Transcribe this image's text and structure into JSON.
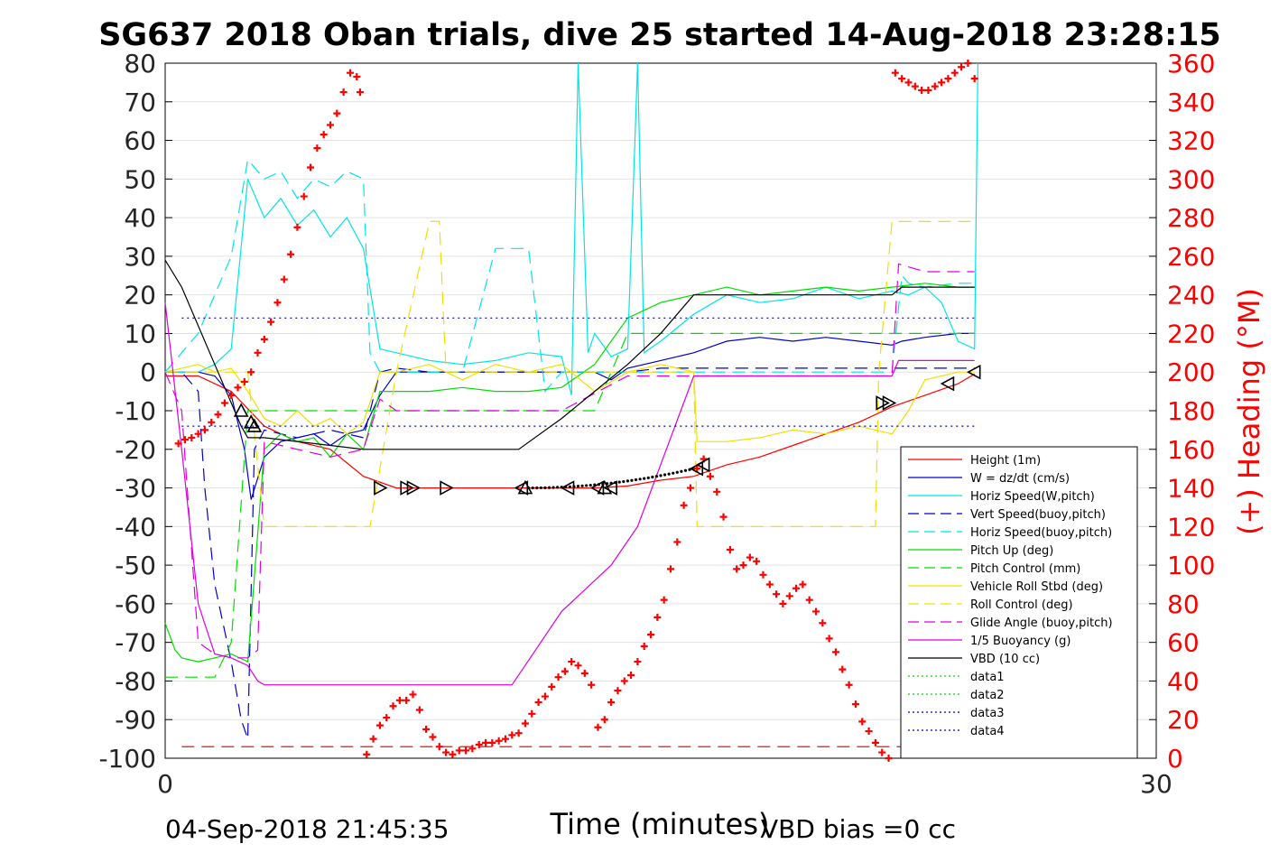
{
  "chart_data": {
    "type": "line",
    "title": "SG637 2018 Oban trials, dive 25 started 14-Aug-2018 23:28:15",
    "xlabel": "Time (minutes)",
    "ylabel_right": "(+) Heading (°M)",
    "footer_left": "04-Sep-2018 21:45:35",
    "footer_right": "VBD bias =0 cc",
    "xlim": [
      0,
      30
    ],
    "ylim": [
      -100,
      80
    ],
    "y2lim": [
      0,
      360
    ],
    "x_ticks": [
      "0",
      "30"
    ],
    "y_ticks": [
      "80",
      "70",
      "60",
      "50",
      "40",
      "30",
      "20",
      "10",
      "0",
      "-10",
      "-20",
      "-30",
      "-40",
      "-50",
      "-60",
      "-70",
      "-80",
      "-90",
      "-100"
    ],
    "y2_ticks": [
      "360",
      "340",
      "320",
      "300",
      "280",
      "260",
      "240",
      "220",
      "200",
      "180",
      "160",
      "140",
      "120",
      "100",
      "80",
      "60",
      "40",
      "20",
      "0"
    ],
    "grid": true,
    "legend_placement": "bottom-right",
    "colors": {
      "red": "#ff0000",
      "blue": "#0000cc",
      "cyan": "#00e5e5",
      "green": "#00dd00",
      "yellow": "#f0e000",
      "magenta": "#dd00dd",
      "black": "#000000",
      "heading": "#ff0000"
    },
    "series": [
      {
        "name": "Height (1m)",
        "color": "#ff0000",
        "dash": "solid",
        "x": [
          0,
          1,
          2,
          3,
          4,
          5,
          6,
          7,
          8,
          9,
          10,
          11,
          12,
          13,
          14,
          15,
          16,
          17,
          18,
          19,
          20,
          21,
          22,
          23,
          24,
          24.5
        ],
        "y": [
          -1,
          -1,
          -5,
          -14,
          -18,
          -20,
          -27,
          -30,
          -30,
          -30,
          -30,
          -30,
          -30,
          -30,
          -29.5,
          -28,
          -27,
          -24,
          -22,
          -19,
          -16,
          -13,
          -9,
          -6,
          -3,
          -0.5
        ]
      },
      {
        "name": "W = dz/dt (cm/s)",
        "color": "#0000cc",
        "dash": "solid",
        "x": [
          0,
          1,
          1.5,
          2,
          2.4,
          2.6,
          3,
          3.5,
          4,
          4.5,
          5,
          5.5,
          6,
          6.5,
          7,
          8,
          10,
          12,
          13,
          13.5,
          14,
          15,
          16,
          17,
          18,
          19,
          20,
          21,
          22,
          22.3,
          23,
          24,
          24.5
        ],
        "y": [
          0,
          0,
          -1,
          -6,
          -20,
          -33,
          -22,
          -18,
          -17,
          -16,
          -19,
          -16,
          -15,
          -6,
          0,
          0,
          0,
          0,
          0,
          -2,
          1,
          3,
          5,
          8,
          9,
          8,
          9,
          8,
          7,
          8,
          9,
          10,
          10
        ]
      },
      {
        "name": "Horiz Speed(W,pitch)",
        "color": "#00e5e5",
        "dash": "solid",
        "x": [
          0,
          1,
          1.5,
          2,
          2.5,
          3,
          3.5,
          4,
          4.5,
          5,
          5.5,
          6,
          6.5,
          7,
          8,
          9,
          10,
          11,
          12,
          12.3,
          12.5,
          12.8,
          13,
          13.5,
          14,
          14.3,
          14.5,
          15,
          16,
          17,
          18,
          19,
          20,
          21,
          22,
          22.5,
          23,
          23.5,
          24,
          24.5,
          24.6
        ],
        "y": [
          0,
          0,
          2,
          6,
          50,
          40,
          45,
          38,
          42,
          35,
          40,
          32,
          6,
          5,
          3,
          2,
          3,
          5,
          4,
          -6,
          80,
          5,
          10,
          4,
          6,
          80,
          5,
          8,
          15,
          20,
          18,
          19,
          22,
          19,
          21,
          20,
          22,
          18,
          8,
          6,
          80
        ]
      },
      {
        "name": "Vert Speed(buoy,pitch)",
        "color": "#0000cc",
        "dash": "dashed",
        "x": [
          0,
          0.5,
          1,
          1.2,
          1.5,
          2,
          2.3,
          2.5,
          2.7,
          3,
          4,
          5,
          6,
          6.5,
          7,
          8,
          10,
          12,
          14,
          15,
          16,
          18,
          20,
          22,
          24,
          24.5
        ],
        "y": [
          0,
          0,
          -5,
          -30,
          -55,
          -75,
          -90,
          -95,
          -20,
          -15,
          -17,
          -15,
          -17,
          0,
          1,
          0,
          0,
          0,
          0,
          1,
          1,
          1,
          1,
          1,
          1,
          1
        ]
      },
      {
        "name": "Horiz Speed(buoy,pitch)",
        "color": "#00e5e5",
        "dash": "dashed",
        "x": [
          0,
          0.5,
          1,
          1.5,
          2,
          2.5,
          3,
          3.5,
          4,
          4.5,
          5,
          5.5,
          6,
          6.2,
          6.5,
          7,
          8,
          9,
          10,
          11,
          11.5,
          12,
          13,
          14,
          15,
          16,
          17,
          18,
          19,
          20,
          21,
          22,
          22.3,
          22.5,
          23,
          24,
          24.5
        ],
        "y": [
          0,
          5,
          10,
          20,
          30,
          55,
          50,
          52,
          45,
          50,
          48,
          52,
          50,
          5,
          0,
          0,
          0,
          0,
          32,
          32,
          -5,
          0,
          0,
          0,
          0,
          0,
          0,
          0,
          0,
          0,
          0,
          0,
          25,
          23,
          22,
          23,
          23
        ]
      },
      {
        "name": "Pitch Up (deg)",
        "color": "#00dd00",
        "dash": "solid",
        "x": [
          0,
          0.3,
          0.5,
          1,
          1.5,
          2,
          2.5,
          3,
          3.5,
          4,
          4.5,
          5,
          5.5,
          6,
          6.5,
          7,
          8,
          9,
          10,
          11,
          12,
          13,
          14,
          15,
          16,
          17,
          18,
          19,
          20,
          21,
          22,
          23,
          24,
          24.5
        ],
        "y": [
          -65,
          -72,
          -74,
          -75,
          -74,
          -73,
          -75,
          -20,
          -16,
          -18,
          -17,
          -22,
          -16,
          -20,
          -5,
          -5,
          -5,
          -4,
          -5,
          -5,
          -4,
          2,
          14,
          18,
          20,
          22,
          20,
          21,
          22,
          21,
          22,
          23,
          22,
          22
        ]
      },
      {
        "name": "Pitch Control (mm)",
        "color": "#00dd00",
        "dash": "dashed",
        "x": [
          0,
          1.5,
          2,
          2.5,
          2.7,
          3,
          6,
          6.5,
          12,
          13,
          14,
          16,
          18,
          20,
          22,
          24,
          24.5
        ],
        "y": [
          -79,
          -79,
          -70,
          -10,
          -10,
          -10,
          -10,
          -10,
          -10,
          -10,
          10,
          10,
          10,
          10,
          10,
          10,
          10
        ]
      },
      {
        "name": "Vehicle Roll Stbd (deg)",
        "color": "#f0e000",
        "dash": "solid",
        "x": [
          0,
          1,
          1.5,
          2,
          2.5,
          3,
          3.5,
          4,
          4.5,
          5,
          5.5,
          6,
          6.5,
          7,
          8,
          9,
          10,
          11,
          12,
          13,
          14,
          15,
          16,
          16.1,
          17,
          18,
          19,
          20,
          21,
          22,
          22.5,
          23,
          24,
          24.5
        ],
        "y": [
          0,
          2,
          0,
          1,
          -5,
          -12,
          -14,
          -10,
          -14,
          -12,
          -16,
          -13,
          0,
          0,
          2,
          -2,
          2,
          0,
          2,
          -5,
          0,
          2,
          0,
          -18,
          -18,
          -17,
          -15,
          -16,
          -14,
          -16,
          -10,
          -2,
          0,
          0
        ]
      },
      {
        "name": "Roll Control (deg)",
        "color": "#f0e000",
        "dash": "dashed",
        "x": [
          0,
          1,
          2,
          2.5,
          3,
          6,
          6.2,
          7,
          8,
          8.3,
          8.5,
          11,
          11.3,
          12,
          15,
          16,
          16.1,
          18,
          20,
          21.5,
          21.6,
          22,
          22.5,
          23,
          24,
          24.5
        ],
        "y": [
          0,
          0,
          0,
          0,
          -40,
          -40,
          -40,
          0,
          39,
          39,
          0,
          0,
          0,
          0,
          0,
          0,
          -40,
          -40,
          -40,
          -40,
          0,
          39,
          39,
          39,
          39,
          39
        ]
      },
      {
        "name": "Glide Angle (buoy,pitch)",
        "color": "#dd00dd",
        "dash": "dashed",
        "x": [
          0,
          0.5,
          1,
          1.5,
          2,
          2.5,
          2.8,
          3,
          4,
          5,
          6,
          6.5,
          7,
          8,
          10,
          12,
          14,
          16,
          18,
          20,
          22,
          22.2,
          23,
          24,
          24.5
        ],
        "y": [
          0,
          -10,
          -70,
          -73,
          -74,
          -74,
          -72,
          -18,
          -20,
          -22,
          -20,
          -7,
          -10,
          -10,
          -10,
          -10,
          -1,
          -1,
          -1,
          -1,
          -1,
          28,
          26,
          26,
          26
        ]
      },
      {
        "name": "1/5 Buoyancy (g)",
        "color": "#dd00dd",
        "dash": "solid",
        "x": [
          0,
          0.5,
          1,
          1.5,
          2,
          2.5,
          2.8,
          3,
          6,
          9,
          10.5,
          12,
          13.5,
          14.3,
          16,
          18,
          20,
          22,
          22.2,
          23,
          24,
          24.5
        ],
        "y": [
          18,
          -20,
          -60,
          -73,
          -74,
          -76,
          -80,
          -81,
          -81,
          -81,
          -81,
          -62,
          -50,
          -40,
          -1,
          -1,
          -1,
          -1,
          3,
          3,
          3,
          3
        ]
      },
      {
        "name": "VBD (10 cc)",
        "color": "#000000",
        "dash": "solid",
        "x": [
          0,
          0.5,
          1,
          1.5,
          2,
          2.3,
          2.5,
          2.8,
          3,
          6,
          7,
          8,
          10,
          10.7,
          12,
          13,
          14,
          15,
          16,
          17,
          18,
          19,
          20,
          21,
          22,
          22.3,
          23,
          24,
          24.5
        ],
        "y": [
          29,
          22,
          12,
          2,
          -8,
          -14,
          -17,
          -17,
          -17,
          -20,
          -20,
          -20,
          -20,
          -20,
          -12,
          -5,
          2,
          10,
          20,
          20,
          20,
          20,
          20,
          20,
          20,
          22,
          22,
          22,
          22
        ]
      },
      {
        "name": "data1",
        "color": "#00dd00",
        "dash": "dotted",
        "x": [],
        "y": []
      },
      {
        "name": "data2",
        "color": "#00dd00",
        "dash": "dotted",
        "x": [],
        "y": []
      },
      {
        "name": "data3",
        "color": "#0000cc",
        "dash": "dotted",
        "x": [
          0.5,
          24.5
        ],
        "y": [
          14,
          14
        ]
      },
      {
        "name": "data4",
        "color": "#0000cc",
        "dash": "dotted",
        "x": [
          0.5,
          24.5
        ],
        "y": [
          -14,
          -14
        ]
      }
    ],
    "extra_lines": [
      {
        "color": "#cc0000",
        "dash": "dashed",
        "x": [
          0.5,
          24.5
        ],
        "y": [
          -97,
          -97
        ]
      }
    ],
    "heading": {
      "color": "#ff0000",
      "marker": "+",
      "axis": "right",
      "x": [
        0.4,
        0.6,
        0.8,
        1.0,
        1.2,
        1.4,
        1.6,
        1.8,
        2.0,
        2.2,
        2.4,
        2.6,
        2.8,
        3.0,
        3.2,
        3.4,
        3.6,
        3.8,
        4.0,
        4.2,
        4.4,
        4.6,
        4.8,
        5.0,
        5.2,
        5.4,
        5.6,
        5.8,
        5.9,
        6.1,
        6.3,
        6.5,
        6.7,
        6.9,
        7.1,
        7.3,
        7.5,
        7.7,
        7.9,
        8.1,
        8.3,
        8.5,
        8.7,
        8.9,
        9.1,
        9.3,
        9.5,
        9.7,
        9.9,
        10.1,
        10.3,
        10.5,
        10.7,
        10.9,
        11.1,
        11.3,
        11.5,
        11.7,
        11.9,
        12.1,
        12.3,
        12.5,
        12.7,
        12.9,
        13.1,
        13.3,
        13.5,
        13.7,
        13.9,
        14.1,
        14.3,
        14.5,
        14.7,
        14.9,
        15.1,
        15.3,
        15.5,
        15.7,
        15.9,
        16.1,
        16.3,
        16.5,
        16.7,
        16.9,
        17.1,
        17.3,
        17.5,
        17.7,
        17.9,
        18.1,
        18.3,
        18.5,
        18.7,
        18.9,
        19.1,
        19.3,
        19.5,
        19.7,
        19.9,
        20.1,
        20.3,
        20.5,
        20.7,
        20.9,
        21.1,
        21.3,
        21.5,
        21.7,
        21.9,
        22.1,
        22.3,
        22.5,
        22.7,
        22.9,
        23.1,
        23.3,
        23.5,
        23.7,
        23.9,
        24.1,
        24.3,
        24.5
      ],
      "y": [
        163,
        165,
        166,
        168,
        170,
        174,
        178,
        184,
        188,
        192,
        195,
        200,
        210,
        217,
        226,
        236,
        248,
        261,
        275,
        291,
        306,
        316,
        323,
        328,
        334,
        345,
        355,
        353,
        345,
        2,
        10,
        17,
        21,
        27,
        30,
        30,
        33,
        25,
        15,
        11,
        6,
        3,
        2,
        4,
        4,
        5,
        7,
        8,
        8,
        9,
        10,
        12,
        13,
        18,
        23,
        29,
        32,
        37,
        42,
        45,
        50,
        48,
        44,
        38,
        16,
        20,
        29,
        35,
        40,
        43,
        50,
        58,
        64,
        73,
        82,
        98,
        112,
        131,
        140,
        150,
        155,
        146,
        138,
        125,
        108,
        98,
        100,
        104,
        102,
        95,
        90,
        85,
        80,
        84,
        88,
        90,
        82,
        76,
        70,
        62,
        55,
        46,
        38,
        28,
        19,
        14,
        8,
        3,
        0,
        355,
        352,
        350,
        348,
        346,
        346,
        348,
        350,
        352,
        355,
        358,
        360,
        352
      ]
    },
    "markers": [
      {
        "label": "right-triangle",
        "x": [
          6.5,
          7.3,
          7.5,
          8.5
        ],
        "y": [
          -30,
          -30,
          -30,
          -30
        ]
      },
      {
        "label": "left-triangle",
        "x": [
          10.8,
          12.2,
          13.1,
          13.5,
          16.1,
          16.3,
          23.7,
          24.5
        ],
        "y": [
          -30,
          -30,
          -30,
          -30,
          -25,
          -24,
          -3,
          0
        ]
      },
      {
        "label": "up-triangle",
        "x": [
          2.3,
          2.6,
          2.7,
          10.9,
          13.3
        ],
        "y": [
          -10,
          -13,
          -14,
          -30,
          -30
        ]
      },
      {
        "label": "right-triangle-2",
        "x": [
          21.7,
          21.9
        ],
        "y": [
          -8,
          -8
        ]
      }
    ],
    "dots": {
      "x_start": 11.0,
      "x_end": 16.0,
      "y_start": -30,
      "y_end": -25
    }
  }
}
